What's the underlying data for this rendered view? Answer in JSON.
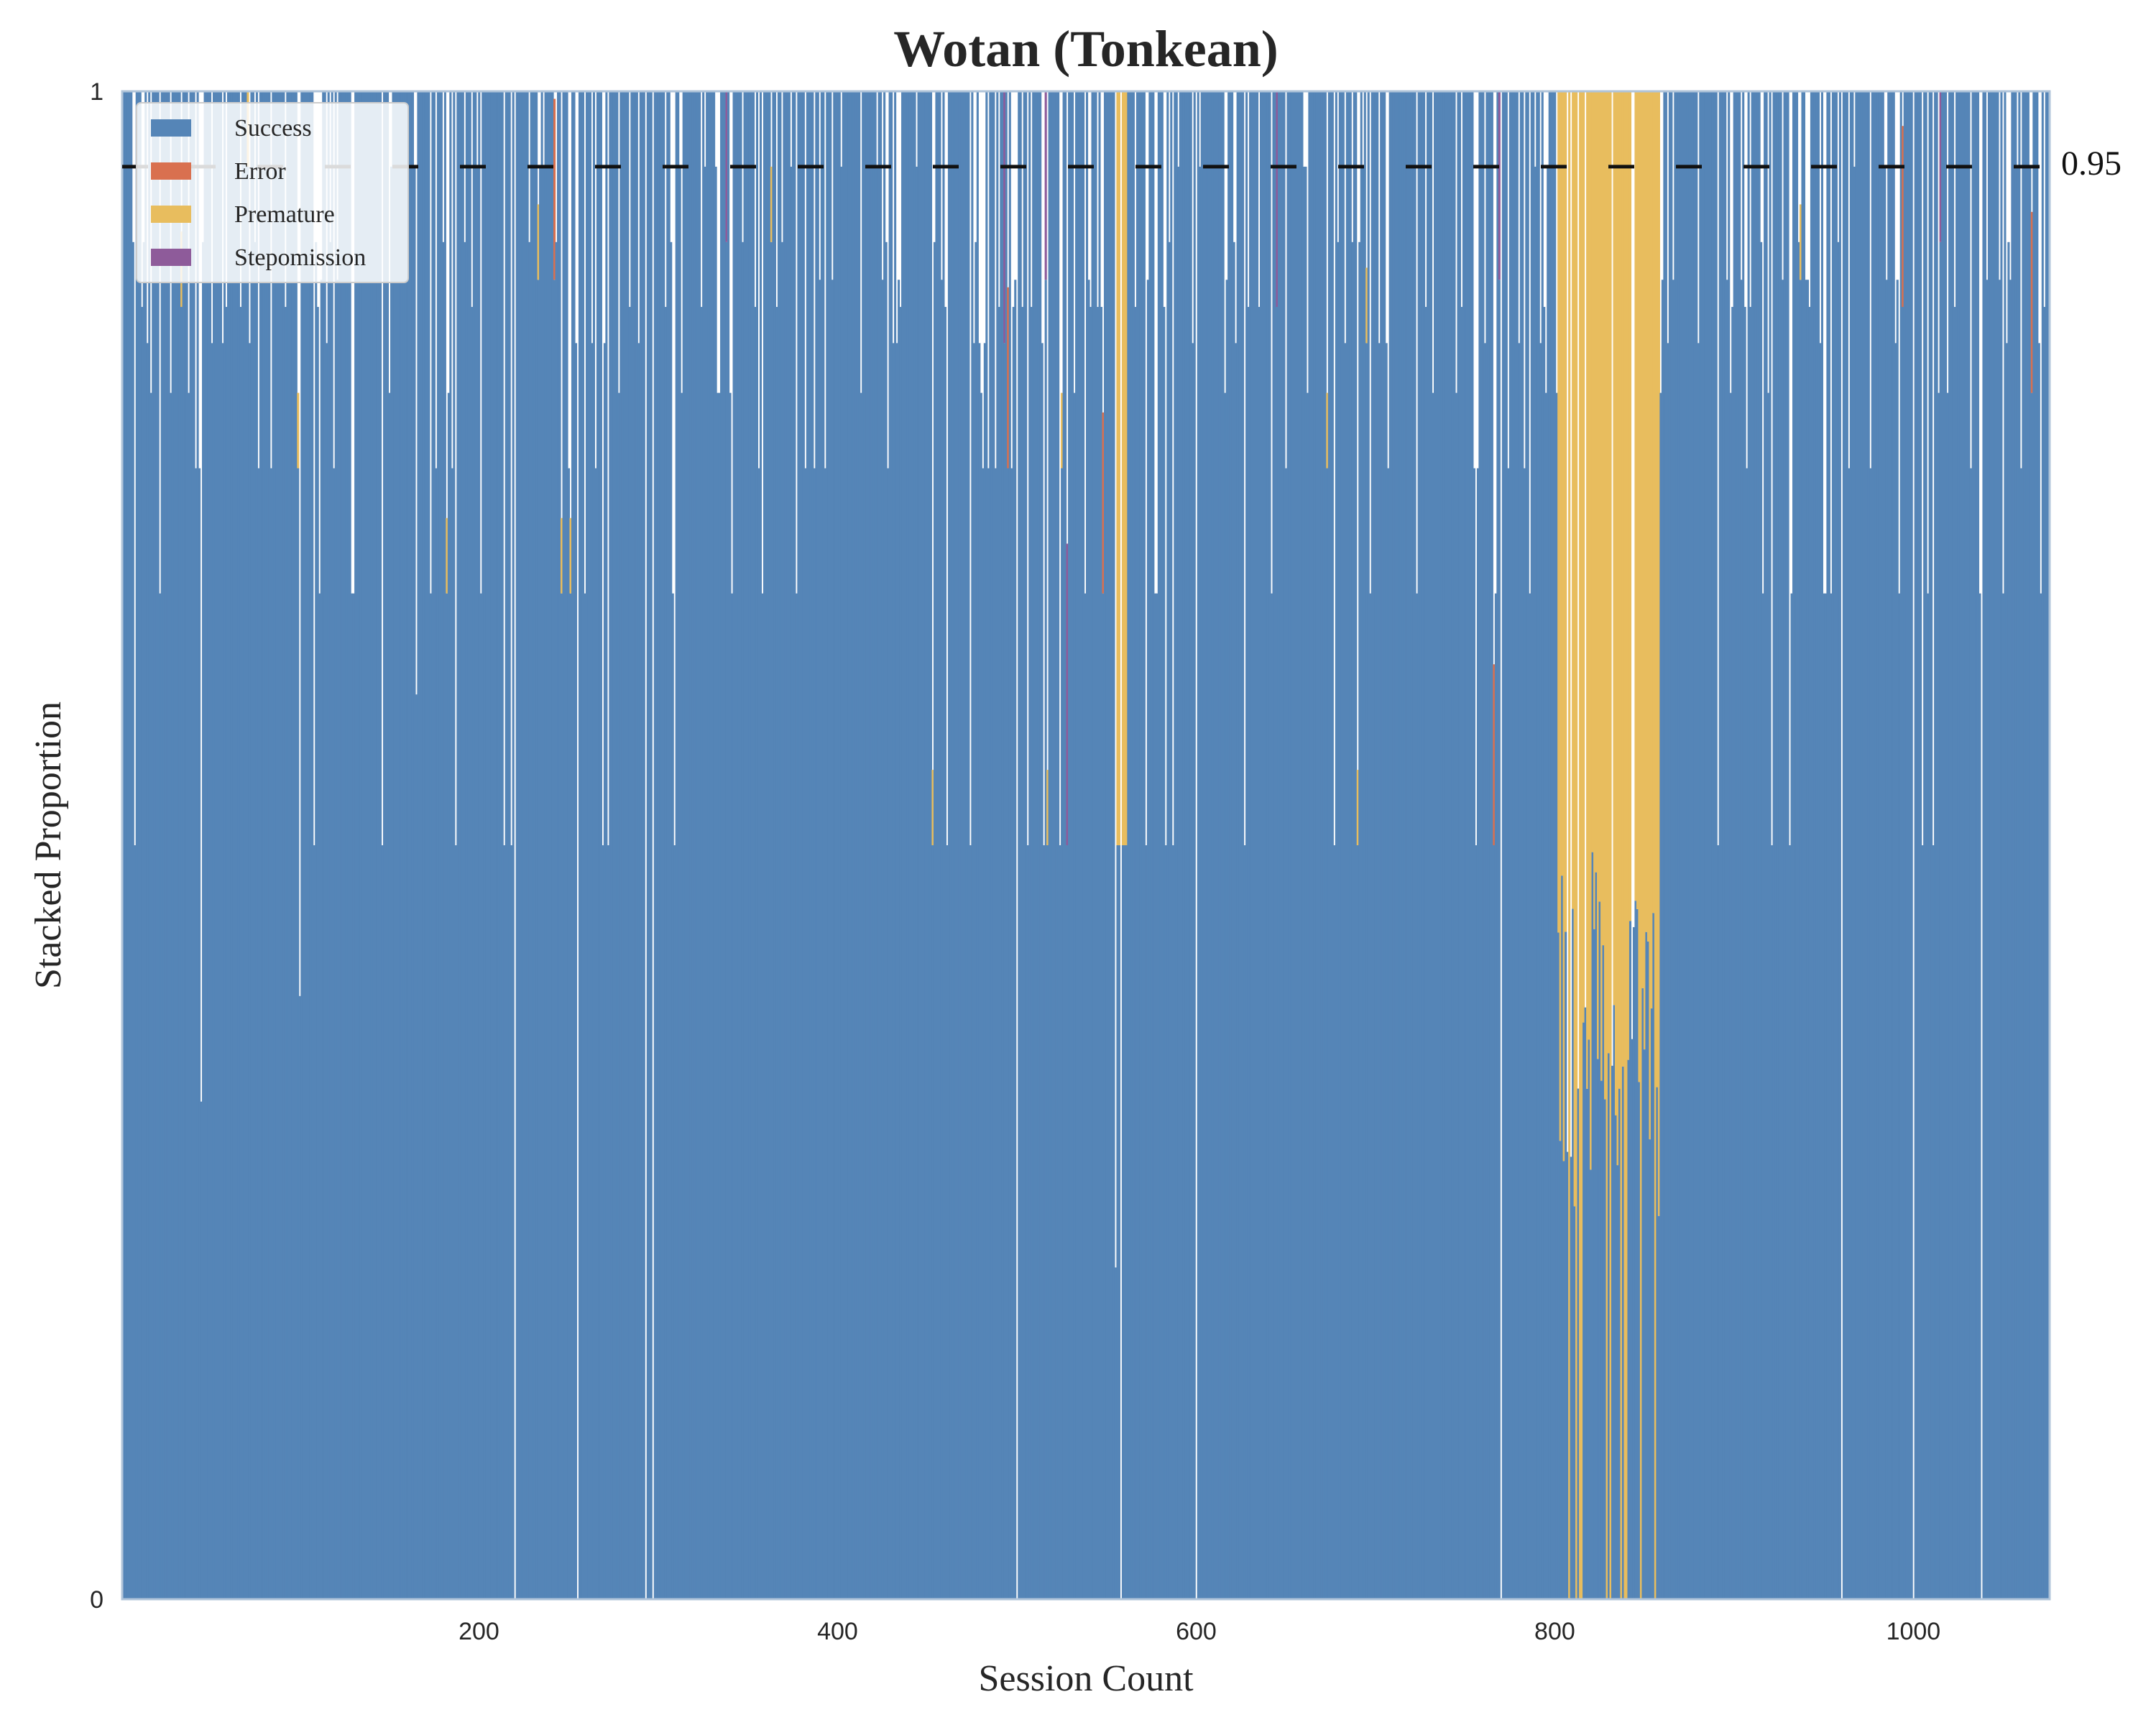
{
  "chart_data": {
    "type": "bar",
    "stacked": true,
    "title": "Wotan (Tonkean)",
    "xlabel": "Session Count",
    "ylabel": "Stacked Proportion",
    "x_range": [
      1,
      1076
    ],
    "ylim": [
      0,
      1
    ],
    "x_ticks": [
      "200",
      "400",
      "600",
      "800",
      "1000"
    ],
    "y_ticks": [
      "0",
      "1"
    ],
    "grid": false,
    "legend_position": "upper-left",
    "reference_line": {
      "value": 0.95,
      "label": "0.95",
      "style": "dashed",
      "color": "#111111"
    },
    "colors": {
      "Success": "#5585b7",
      "Error": "#d9704f",
      "Premature": "#e8bd5e",
      "Stepomission": "#8e5b9a",
      "axes": "#b0c4d9"
    },
    "series": [
      {
        "name": "Success"
      },
      {
        "name": "Error"
      },
      {
        "name": "Premature"
      },
      {
        "name": "Stepomission"
      }
    ],
    "sessions_profile": {
      "n_sessions": 1076,
      "typical_success": 1.0,
      "noise_fraction_dips": 0.28,
      "low_success_sessions": [
        {
          "x": 8,
          "success": 0.5
        },
        {
          "x": 45,
          "success": 0.33
        },
        {
          "x": 100,
          "success": 0.4
        },
        {
          "x": 108,
          "success": 0.5
        },
        {
          "x": 165,
          "success": 0.6
        },
        {
          "x": 220,
          "success": 0.0
        },
        {
          "x": 255,
          "success": 0.0
        },
        {
          "x": 293,
          "success": 0.0
        },
        {
          "x": 297,
          "success": 0.0
        },
        {
          "x": 500,
          "success": 0.0
        },
        {
          "x": 555,
          "success": 0.22
        },
        {
          "x": 558,
          "success": 0.0
        },
        {
          "x": 600,
          "success": 0.0
        },
        {
          "x": 770,
          "success": 0.0
        },
        {
          "x": 960,
          "success": 0.0
        },
        {
          "x": 1000,
          "success": 0.0
        },
        {
          "x": 1038,
          "success": 0.0
        }
      ],
      "premature_block": {
        "x_start": 802,
        "x_end": 858,
        "success_range": [
          0.25,
          0.5
        ],
        "premature_to_top": true
      },
      "premature_narrow": {
        "x_start": 555,
        "x_end": 561,
        "success": 0.5
      }
    }
  }
}
